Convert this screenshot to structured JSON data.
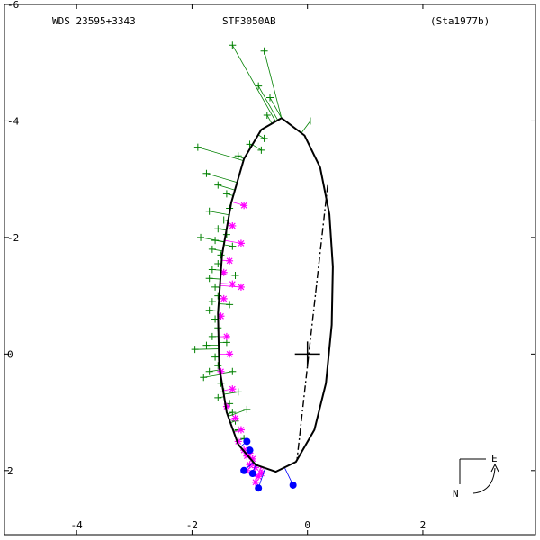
{
  "header": {
    "wds": "WDS 23595+3343",
    "name": "STF3050AB",
    "ref": "(Sta1977b)"
  },
  "compass": {
    "east": "E",
    "north": "N"
  },
  "chart_data": {
    "type": "scatter",
    "title": "STF3050AB",
    "xlim": [
      -5.25,
      3.95
    ],
    "ylim": [
      -3.1,
      6.0
    ],
    "x_ticks": [
      -4,
      -2,
      0,
      2
    ],
    "y_ticks": [
      -2,
      0,
      2,
      4,
      6
    ],
    "x_tick_labels": [
      "-4",
      "-2",
      "0",
      "2"
    ],
    "y_tick_labels": [
      "2",
      "0",
      "-2",
      "-4",
      "-6"
    ],
    "grid": false,
    "colors": {
      "orbit": "#000000",
      "visual": "#008000",
      "micrometer": "#ff00ff",
      "interferometric": "#0000ff"
    },
    "orbit_ellipse": {
      "points": [
        [
          -0.45,
          4.05
        ],
        [
          -0.05,
          3.75
        ],
        [
          0.22,
          3.2
        ],
        [
          0.38,
          2.4
        ],
        [
          0.44,
          1.5
        ],
        [
          0.42,
          0.5
        ],
        [
          0.32,
          -0.5
        ],
        [
          0.12,
          -1.3
        ],
        [
          -0.2,
          -1.85
        ],
        [
          -0.55,
          -2.02
        ],
        [
          -0.9,
          -1.9
        ],
        [
          -1.2,
          -1.55
        ],
        [
          -1.4,
          -1.0
        ],
        [
          -1.53,
          -0.2
        ],
        [
          -1.55,
          0.7
        ],
        [
          -1.48,
          1.7
        ],
        [
          -1.32,
          2.6
        ],
        [
          -1.1,
          3.35
        ],
        [
          -0.8,
          3.85
        ],
        [
          -0.45,
          4.05
        ]
      ]
    },
    "line_of_nodes": [
      [
        0.35,
        2.9
      ],
      [
        -0.18,
        -1.8
      ]
    ],
    "primary": [
      0,
      0
    ],
    "visual_obs": [
      [
        -1.3,
        5.3
      ],
      [
        -0.75,
        5.2
      ],
      [
        -0.85,
        4.6
      ],
      [
        -0.65,
        4.4
      ],
      [
        -0.7,
        4.1
      ],
      [
        -0.75,
        3.7
      ],
      [
        -0.8,
        3.5
      ],
      [
        0.05,
        4.0
      ],
      [
        -1.0,
        3.6
      ],
      [
        -1.2,
        3.4
      ],
      [
        -1.9,
        3.55
      ],
      [
        -1.75,
        3.1
      ],
      [
        -1.55,
        2.9
      ],
      [
        -1.4,
        2.75
      ],
      [
        -1.35,
        2.5
      ],
      [
        -1.45,
        2.3
      ],
      [
        -1.55,
        2.15
      ],
      [
        -1.6,
        1.95
      ],
      [
        -1.65,
        1.8
      ],
      [
        -1.5,
        1.7
      ],
      [
        -1.55,
        1.55
      ],
      [
        -1.65,
        1.45
      ],
      [
        -1.7,
        1.3
      ],
      [
        -1.6,
        1.15
      ],
      [
        -1.55,
        1.0
      ],
      [
        -1.65,
        0.9
      ],
      [
        -1.7,
        0.75
      ],
      [
        -1.6,
        0.6
      ],
      [
        -1.55,
        0.45
      ],
      [
        -1.65,
        0.3
      ],
      [
        -1.75,
        0.15
      ],
      [
        -1.95,
        0.08
      ],
      [
        -1.6,
        -0.05
      ],
      [
        -1.55,
        -0.2
      ],
      [
        -1.7,
        -0.3
      ],
      [
        -1.8,
        -0.4
      ],
      [
        -1.5,
        -0.5
      ],
      [
        -1.45,
        -0.65
      ],
      [
        -1.55,
        -0.75
      ],
      [
        -1.35,
        -0.85
      ],
      [
        -1.3,
        -1.0
      ],
      [
        -1.25,
        -1.15
      ],
      [
        -1.2,
        -1.3
      ],
      [
        -1.1,
        -1.45
      ],
      [
        -1.85,
        2.0
      ],
      [
        -1.7,
        2.45
      ],
      [
        -1.4,
        2.05
      ],
      [
        -1.3,
        1.85
      ],
      [
        -1.25,
        1.35
      ],
      [
        -1.35,
        0.85
      ],
      [
        -1.4,
        0.2
      ],
      [
        -1.3,
        -0.3
      ],
      [
        -1.2,
        -0.65
      ],
      [
        -1.05,
        -0.95
      ]
    ],
    "micrometer_obs": [
      [
        -1.1,
        2.55
      ],
      [
        -1.3,
        2.2
      ],
      [
        -1.15,
        1.9
      ],
      [
        -1.35,
        1.6
      ],
      [
        -1.45,
        1.4
      ],
      [
        -1.3,
        1.2
      ],
      [
        -1.45,
        0.95
      ],
      [
        -1.15,
        1.15
      ],
      [
        -1.5,
        0.65
      ],
      [
        -1.4,
        0.3
      ],
      [
        -1.35,
        0.0
      ],
      [
        -1.5,
        -0.3
      ],
      [
        -1.3,
        -0.6
      ],
      [
        -1.4,
        -0.9
      ],
      [
        -1.25,
        -1.1
      ],
      [
        -1.15,
        -1.3
      ],
      [
        -1.2,
        -1.5
      ],
      [
        -1.1,
        -1.65
      ],
      [
        -1.05,
        -1.75
      ],
      [
        -0.95,
        -1.8
      ],
      [
        -1.0,
        -1.9
      ],
      [
        -0.9,
        -1.95
      ],
      [
        -1.05,
        -2.0
      ],
      [
        -0.95,
        -2.05
      ],
      [
        -0.85,
        -2.1
      ],
      [
        -0.9,
        -2.2
      ],
      [
        -0.8,
        -2.05
      ],
      [
        -1.0,
        -1.7
      ]
    ],
    "interferometric_obs": [
      [
        -1.05,
        -1.5
      ],
      [
        -1.0,
        -1.65
      ],
      [
        -1.1,
        -2.0
      ],
      [
        -0.95,
        -2.05
      ],
      [
        -0.85,
        -2.3
      ],
      [
        -0.25,
        -2.25
      ]
    ]
  }
}
